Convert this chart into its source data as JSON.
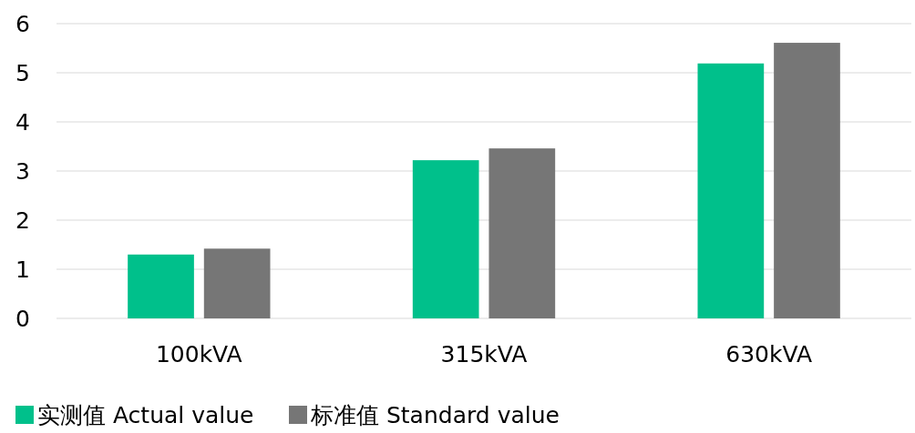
{
  "chart_data": {
    "type": "bar",
    "categories": [
      "100kVA",
      "315kVA",
      "630kVA"
    ],
    "series": [
      {
        "name": "实测值 Actual value",
        "color": "#00c08b",
        "values": [
          1.3,
          3.22,
          5.19
        ]
      },
      {
        "name": "标准值 Standard value",
        "color": "#767676",
        "values": [
          1.42,
          3.46,
          5.61
        ]
      }
    ],
    "ylim": [
      0,
      6
    ],
    "yticks": [
      0,
      1,
      2,
      3,
      4,
      5,
      6
    ],
    "grid": "y",
    "legend": "bottom"
  }
}
